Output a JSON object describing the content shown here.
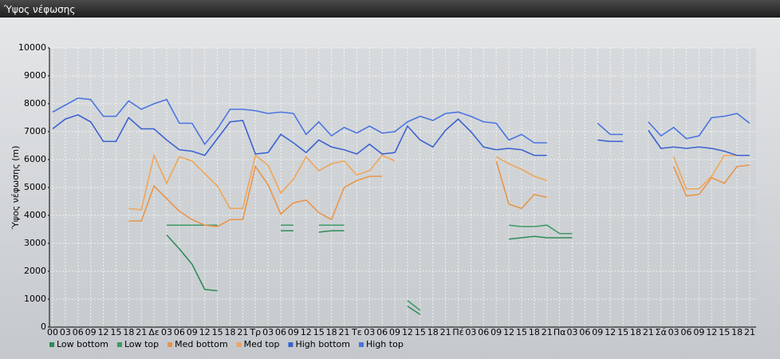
{
  "chart_data": {
    "type": "line",
    "title": "Ύψος νέφωσης",
    "y_label": "Ύψος νέφωσης (m)",
    "categories": [
      "00",
      "03",
      "06",
      "09",
      "12",
      "15",
      "18",
      "21",
      "Δε",
      "03",
      "06",
      "09",
      "12",
      "15",
      "18",
      "21",
      "Τρ",
      "03",
      "06",
      "09",
      "12",
      "15",
      "18",
      "21",
      "Τε",
      "03",
      "06",
      "09",
      "12",
      "15",
      "18",
      "21",
      "Πέ",
      "03",
      "06",
      "09",
      "12",
      "15",
      "18",
      "21",
      "Πα",
      "03",
      "06",
      "09",
      "12",
      "15",
      "18",
      "21",
      "Σά",
      "03",
      "06",
      "09",
      "12",
      "15",
      "18",
      "21"
    ],
    "ylim": [
      0,
      10000
    ],
    "yticks": [
      0,
      1000,
      2000,
      3000,
      4000,
      5000,
      6000,
      7000,
      8000,
      9000,
      10000
    ],
    "grid": true,
    "series": [
      {
        "name": "Low bottom",
        "color": "#2e8b57",
        "values": [
          null,
          null,
          null,
          null,
          null,
          null,
          null,
          null,
          null,
          3300,
          2800,
          2250,
          1350,
          1300,
          null,
          null,
          null,
          null,
          3450,
          3450,
          null,
          3400,
          3450,
          3450,
          null,
          null,
          null,
          null,
          750,
          450,
          null,
          null,
          null,
          null,
          null,
          null,
          3150,
          3200,
          3250,
          3200,
          3200,
          3200,
          null,
          null,
          null,
          null,
          null,
          null,
          null,
          null,
          null,
          null,
          null,
          null,
          null,
          null
        ]
      },
      {
        "name": "Low top",
        "color": "#3c9a64",
        "values": [
          null,
          null,
          null,
          null,
          null,
          null,
          null,
          null,
          null,
          3650,
          3650,
          3650,
          3650,
          3650,
          null,
          null,
          null,
          null,
          3650,
          3650,
          null,
          3650,
          3650,
          3650,
          null,
          null,
          null,
          null,
          950,
          600,
          null,
          null,
          null,
          null,
          null,
          null,
          3650,
          3600,
          3600,
          3650,
          3350,
          3350,
          null,
          null,
          null,
          null,
          null,
          null,
          null,
          null,
          null,
          null,
          null,
          null,
          null,
          null
        ]
      },
      {
        "name": "Med bottom",
        "color": "#e8954a",
        "values": [
          null,
          null,
          null,
          null,
          null,
          null,
          3800,
          3800,
          5050,
          4600,
          4150,
          3850,
          3650,
          3600,
          3850,
          3850,
          5750,
          5100,
          4050,
          4450,
          4550,
          4100,
          3850,
          5000,
          5250,
          5400,
          5400,
          null,
          null,
          null,
          null,
          null,
          null,
          null,
          null,
          5950,
          4400,
          4250,
          4750,
          4650,
          null,
          null,
          null,
          null,
          null,
          null,
          null,
          null,
          null,
          5750,
          4700,
          4750,
          5350,
          5150,
          5750,
          5800
        ]
      },
      {
        "name": "Med top",
        "color": "#f0a55a",
        "values": [
          null,
          null,
          null,
          null,
          null,
          null,
          4250,
          4200,
          6150,
          5150,
          6100,
          5950,
          5500,
          5050,
          4250,
          4250,
          6150,
          5800,
          4800,
          5300,
          6100,
          5600,
          5850,
          5950,
          5450,
          5600,
          6150,
          5950,
          null,
          null,
          null,
          null,
          null,
          null,
          null,
          6100,
          5850,
          5650,
          5400,
          5250,
          null,
          null,
          null,
          null,
          null,
          null,
          null,
          null,
          null,
          6100,
          4950,
          4950,
          5400,
          6150,
          6150,
          6150
        ]
      },
      {
        "name": "High bottom",
        "color": "#3b62d0",
        "values": [
          7100,
          7450,
          7600,
          7350,
          6650,
          6650,
          7500,
          7100,
          7100,
          6700,
          6350,
          6300,
          6150,
          6750,
          7350,
          7400,
          6200,
          6250,
          6900,
          6600,
          6250,
          6700,
          6450,
          6350,
          6200,
          6550,
          6200,
          6250,
          7200,
          6700,
          6450,
          7050,
          7450,
          7000,
          6450,
          6350,
          6400,
          6350,
          6150,
          6150,
          null,
          null,
          null,
          6700,
          6650,
          6650,
          null,
          7050,
          6400,
          6450,
          6400,
          6450,
          6400,
          6300,
          6150,
          6150
        ]
      },
      {
        "name": "High top",
        "color": "#4a74e0",
        "values": [
          7700,
          7950,
          8200,
          8150,
          7550,
          7550,
          8100,
          7800,
          8000,
          8150,
          7300,
          7300,
          6550,
          7100,
          7800,
          7800,
          7750,
          7650,
          7700,
          7650,
          6900,
          7350,
          6850,
          7150,
          6950,
          7200,
          6950,
          7000,
          7350,
          7550,
          7400,
          7650,
          7700,
          7550,
          7350,
          7300,
          6700,
          6900,
          6600,
          6600,
          null,
          null,
          null,
          7300,
          6900,
          6900,
          null,
          7350,
          6850,
          7150,
          6750,
          6850,
          7500,
          7550,
          7650,
          7300
        ]
      }
    ]
  }
}
